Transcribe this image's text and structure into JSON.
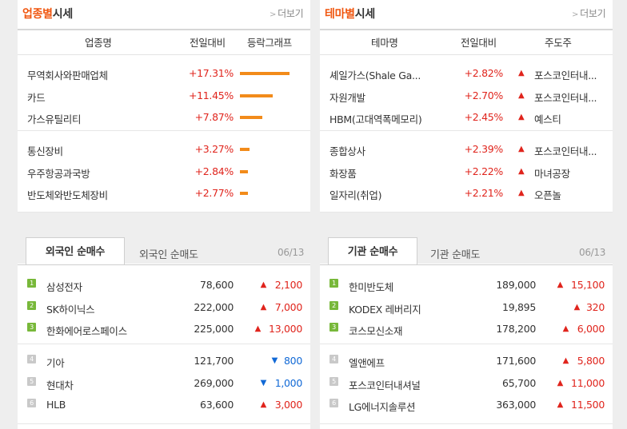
{
  "sector": {
    "title_accent": "업종별",
    "title_rest": "시세",
    "more": "더보기",
    "col_name": "업종명",
    "col_change": "전일대비",
    "col_graph": "등락그래프",
    "rows": [
      {
        "name": "무역회사와판매업체",
        "change": "+17.31%",
        "pct": 17.31
      },
      {
        "name": "카드",
        "change": "+11.45%",
        "pct": 11.45
      },
      {
        "name": "가스유틸리티",
        "change": "+7.87%",
        "pct": 7.87
      },
      {
        "name": "통신장비",
        "change": "+3.27%",
        "pct": 3.27
      },
      {
        "name": "우주항공과국방",
        "change": "+2.84%",
        "pct": 2.84
      },
      {
        "name": "반도체와반도체장비",
        "change": "+2.77%",
        "pct": 2.77
      }
    ]
  },
  "theme": {
    "title_accent": "테마별",
    "title_rest": "시세",
    "more": "더보기",
    "col_name": "테마명",
    "col_change": "전일대비",
    "col_lead": "주도주",
    "rows": [
      {
        "name": "셰일가스(Shale Ga...",
        "change": "+2.82%",
        "lead": "포스코인터내..."
      },
      {
        "name": "자원개발",
        "change": "+2.70%",
        "lead": "포스코인터내..."
      },
      {
        "name": "HBM(고대역폭메모리)",
        "change": "+2.45%",
        "lead": "예스티"
      },
      {
        "name": "종합상사",
        "change": "+2.39%",
        "lead": "포스코인터내..."
      },
      {
        "name": "화장품",
        "change": "+2.22%",
        "lead": "마녀공장"
      },
      {
        "name": "일자리(취업)",
        "change": "+2.21%",
        "lead": "오픈놀"
      }
    ]
  },
  "foreign": {
    "tab_active": "외국인 순매수",
    "tab_inactive": "외국인 순매도",
    "date": "06/13",
    "rows": [
      {
        "rank": "1",
        "name": "삼성전자",
        "price": "78,600",
        "dir": "up",
        "diff": "2,100"
      },
      {
        "rank": "2",
        "name": "SK하이닉스",
        "price": "222,000",
        "dir": "up",
        "diff": "7,000"
      },
      {
        "rank": "3",
        "name": "한화에어로스페이스",
        "price": "225,000",
        "dir": "up",
        "diff": "13,000"
      },
      {
        "rank": "4",
        "name": "기아",
        "price": "121,700",
        "dir": "down",
        "diff": "800"
      },
      {
        "rank": "5",
        "name": "현대차",
        "price": "269,000",
        "dir": "down",
        "diff": "1,000"
      },
      {
        "rank": "6",
        "name": "HLB",
        "price": "63,600",
        "dir": "up",
        "diff": "3,000"
      }
    ]
  },
  "institution": {
    "tab_active": "기관 순매수",
    "tab_inactive": "기관 순매도",
    "date": "06/13",
    "rows": [
      {
        "rank": "1",
        "name": "한미반도체",
        "price": "189,000",
        "dir": "up",
        "diff": "15,100"
      },
      {
        "rank": "2",
        "name": "KODEX 레버리지",
        "price": "19,895",
        "dir": "up",
        "diff": "320"
      },
      {
        "rank": "3",
        "name": "코스모신소재",
        "price": "178,200",
        "dir": "up",
        "diff": "6,000"
      },
      {
        "rank": "4",
        "name": "엘앤에프",
        "price": "171,600",
        "dir": "up",
        "diff": "5,800"
      },
      {
        "rank": "5",
        "name": "포스코인터내셔널",
        "price": "65,700",
        "dir": "up",
        "diff": "11,000"
      },
      {
        "rank": "6",
        "name": "LG에너지솔루션",
        "price": "363,000",
        "dir": "up",
        "diff": "11,500"
      }
    ]
  },
  "colors": {
    "accent": "#f0560f",
    "up": "#e0241c",
    "down": "#1169d6",
    "bar": "#f28b1a",
    "rank_top": "#78b83a",
    "rank_norm": "#c9c9c9"
  },
  "icons": {
    "up": "▲",
    "down": "▼",
    "more": "chevron-right"
  }
}
